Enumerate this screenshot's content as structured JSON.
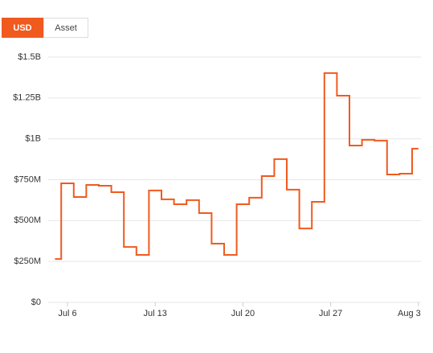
{
  "toggle": {
    "options": [
      "USD",
      "Asset"
    ],
    "active": 0
  },
  "chart_data": {
    "type": "step",
    "x": [
      "Jul 5",
      "Jul 6",
      "Jul 7",
      "Jul 8",
      "Jul 9",
      "Jul 10",
      "Jul 11",
      "Jul 12",
      "Jul 13",
      "Jul 14",
      "Jul 15",
      "Jul 16",
      "Jul 17",
      "Jul 18",
      "Jul 19",
      "Jul 20",
      "Jul 21",
      "Jul 22",
      "Jul 23",
      "Jul 24",
      "Jul 25",
      "Jul 26",
      "Jul 27",
      "Jul 28",
      "Jul 29",
      "Jul 30",
      "Jul 31",
      "Aug 1",
      "Aug 2",
      "Aug 3"
    ],
    "series": [
      {
        "color": "#f05a1e",
        "values": [
          265000000,
          728000000,
          644000000,
          718000000,
          713000000,
          674000000,
          339000000,
          290000000,
          684000000,
          630000000,
          600000000,
          625000000,
          546000000,
          359000000,
          290000000,
          600000000,
          640000000,
          772000000,
          876000000,
          689000000,
          452000000,
          615000000,
          1402000000,
          1264000000,
          959000000,
          994000000,
          989000000,
          782000000,
          787000000,
          940000000
        ]
      }
    ],
    "xticks": [
      "Jul 6",
      "Jul 13",
      "Jul 20",
      "Jul 27",
      "Aug 3"
    ],
    "ylim": [
      0,
      1500000000
    ],
    "yticks": [
      {
        "value": 0,
        "label": "$0"
      },
      {
        "value": 250000000,
        "label": "$250M"
      },
      {
        "value": 500000000,
        "label": "$500M"
      },
      {
        "value": 750000000,
        "label": "$750M"
      },
      {
        "value": 1000000000,
        "label": "$1B"
      },
      {
        "value": 1250000000,
        "label": "$1.25B"
      },
      {
        "value": 1500000000,
        "label": "$1.5B"
      }
    ],
    "grid": true
  }
}
